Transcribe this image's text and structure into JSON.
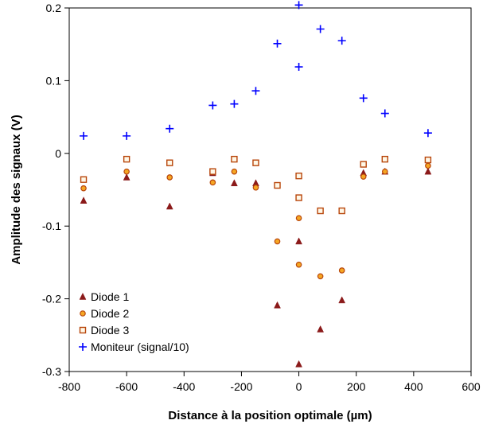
{
  "chart_data": {
    "type": "scatter",
    "title": "",
    "xlabel": "Distance à la position optimale (µm)",
    "ylabel": "Amplitude des signaux (V)",
    "xlim": [
      -800,
      600
    ],
    "ylim": [
      -0.3,
      0.2
    ],
    "x_ticks": [
      -800,
      -600,
      -400,
      -200,
      0,
      200,
      400,
      600
    ],
    "x_tick_labels": [
      "-800",
      "-600",
      "-400",
      "-200",
      "0",
      "200",
      "400",
      "600"
    ],
    "y_ticks": [
      -0.3,
      -0.2,
      -0.1,
      0,
      0.1,
      0.2
    ],
    "y_tick_labels": [
      "-0.3",
      "-0.2",
      "-0.1",
      "0",
      "0.1",
      "0.2"
    ],
    "grid": false,
    "legend_position": "bottom-left",
    "series": [
      {
        "name": "Diode 1",
        "marker": "triangle",
        "color": "#8B1A1A",
        "points": [
          [
            -750,
            -0.065
          ],
          [
            -600,
            -0.033
          ],
          [
            -450,
            -0.073
          ],
          [
            -300,
            -0.027
          ],
          [
            -225,
            -0.041
          ],
          [
            -150,
            -0.041
          ],
          [
            -75,
            -0.209
          ],
          [
            0,
            -0.121
          ],
          [
            0,
            -0.29
          ],
          [
            75,
            -0.242
          ],
          [
            150,
            -0.202
          ],
          [
            225,
            -0.027
          ],
          [
            300,
            -0.025
          ],
          [
            450,
            -0.025
          ]
        ]
      },
      {
        "name": "Diode 2",
        "marker": "circle",
        "color": "#F5A623",
        "stroke": "#B8450A",
        "points": [
          [
            -750,
            -0.048
          ],
          [
            -600,
            -0.025
          ],
          [
            -450,
            -0.033
          ],
          [
            -300,
            -0.04
          ],
          [
            -225,
            -0.025
          ],
          [
            -150,
            -0.047
          ],
          [
            -75,
            -0.121
          ],
          [
            0,
            -0.089
          ],
          [
            0,
            -0.153
          ],
          [
            75,
            -0.169
          ],
          [
            150,
            -0.161
          ],
          [
            225,
            -0.032
          ],
          [
            300,
            -0.025
          ],
          [
            450,
            -0.017
          ]
        ]
      },
      {
        "name": "Diode 3",
        "marker": "square",
        "color": "#FFF8E7",
        "stroke": "#B8450A",
        "points": [
          [
            -750,
            -0.036
          ],
          [
            -600,
            -0.008
          ],
          [
            -450,
            -0.013
          ],
          [
            -300,
            -0.025
          ],
          [
            -225,
            -0.008
          ],
          [
            -150,
            -0.013
          ],
          [
            -75,
            -0.044
          ],
          [
            0,
            -0.031
          ],
          [
            0,
            -0.061
          ],
          [
            75,
            -0.079
          ],
          [
            150,
            -0.079
          ],
          [
            225,
            -0.015
          ],
          [
            300,
            -0.008
          ],
          [
            450,
            -0.009
          ]
        ]
      },
      {
        "name": "Moniteur (signal/10)",
        "marker": "plus",
        "color": "#0000FF",
        "points": [
          [
            -750,
            0.024
          ],
          [
            -600,
            0.024
          ],
          [
            -450,
            0.034
          ],
          [
            -300,
            0.066
          ],
          [
            -225,
            0.068
          ],
          [
            -150,
            0.086
          ],
          [
            -75,
            0.151
          ],
          [
            0,
            0.204
          ],
          [
            0,
            0.119
          ],
          [
            75,
            0.171
          ],
          [
            150,
            0.155
          ],
          [
            225,
            0.076
          ],
          [
            300,
            0.055
          ],
          [
            450,
            0.028
          ]
        ]
      }
    ]
  }
}
